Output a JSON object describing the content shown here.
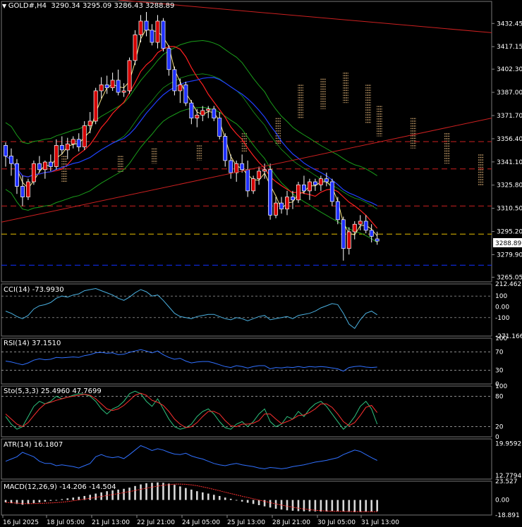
{
  "header": {
    "symbol": "GOLD#,H4",
    "ohlc": "3290.34 3295.09 3286.43 3288.89"
  },
  "price_axis": {
    "ticks": [
      "3432.45",
      "3417.15",
      "3402.30",
      "3387.00",
      "3371.70",
      "3356.40",
      "3341.10",
      "3325.80",
      "3310.50",
      "3295.20",
      "3279.90",
      "3265.05"
    ],
    "current_price_label": "3288.89"
  },
  "time_axis": {
    "labels": [
      "16 Jul 2025",
      "18 Jul 05:00",
      "21 Jul 13:00",
      "22 Jul 21:00",
      "24 Jul 05:00",
      "25 Jul 13:00",
      "28 Jul 21:00",
      "30 Jul 05:00",
      "31 Jul 13:00"
    ]
  },
  "indicators": {
    "cci": {
      "label": "CCI(14) -73.9930",
      "ticks": [
        "212.462",
        "100",
        "0.00",
        "-100",
        "-271.1664"
      ]
    },
    "rsi": {
      "label": "RSI(14) 37.1510",
      "ticks": [
        "100",
        "70",
        "30",
        "0"
      ]
    },
    "sto": {
      "label": "Sto(5,3,3) 25.4960 47.7699",
      "ticks": [
        "100",
        "80",
        "20",
        "0"
      ]
    },
    "atr": {
      "label": "ATR(14) 16.1807",
      "ticks": [
        "19.9592",
        "12.7794"
      ]
    },
    "macd": {
      "label": "MACD(12,26,9) -14.206 -14.504",
      "ticks": [
        "23.527",
        "0.00",
        "-18.891"
      ]
    }
  },
  "colors": {
    "bull": "#d40000",
    "bear": "#2030ff",
    "grid": "#555555",
    "tenkan": "#ff2020",
    "kijun": "#2040ff",
    "bands": "#1a9e1a",
    "cloud": "#f0c080",
    "hline_red": "#cc2020",
    "hline_yellow": "#e8c000",
    "hline_blue": "#1030ff"
  },
  "chart_data": {
    "type": "candlestick",
    "symbol": "GOLD#",
    "timeframe": "H4",
    "ylim": [
      3262,
      3447
    ],
    "candles": [
      [
        3352,
        3354,
        3338,
        3345
      ],
      [
        3345,
        3350,
        3332,
        3340
      ],
      [
        3340,
        3343,
        3320,
        3325
      ],
      [
        3325,
        3332,
        3312,
        3318
      ],
      [
        3318,
        3330,
        3316,
        3328
      ],
      [
        3328,
        3342,
        3326,
        3340
      ],
      [
        3340,
        3345,
        3334,
        3336
      ],
      [
        3336,
        3342,
        3330,
        3341
      ],
      [
        3341,
        3346,
        3335,
        3338
      ],
      [
        3338,
        3356,
        3336,
        3352
      ],
      [
        3352,
        3358,
        3346,
        3349
      ],
      [
        3349,
        3357,
        3343,
        3353
      ],
      [
        3353,
        3358,
        3350,
        3356
      ],
      [
        3356,
        3360,
        3348,
        3351
      ],
      [
        3351,
        3368,
        3349,
        3365
      ],
      [
        3365,
        3374,
        3360,
        3368
      ],
      [
        3368,
        3390,
        3366,
        3388
      ],
      [
        3388,
        3397,
        3383,
        3392
      ],
      [
        3392,
        3398,
        3386,
        3390
      ],
      [
        3390,
        3400,
        3388,
        3395
      ],
      [
        3395,
        3402,
        3385,
        3387
      ],
      [
        3387,
        3393,
        3384,
        3388
      ],
      [
        3388,
        3410,
        3386,
        3408
      ],
      [
        3408,
        3428,
        3405,
        3425
      ],
      [
        3425,
        3438,
        3420,
        3434
      ],
      [
        3434,
        3440,
        3424,
        3428
      ],
      [
        3428,
        3432,
        3418,
        3420
      ],
      [
        3420,
        3438,
        3416,
        3434
      ],
      [
        3434,
        3436,
        3414,
        3416
      ],
      [
        3416,
        3418,
        3398,
        3402
      ],
      [
        3402,
        3404,
        3385,
        3388
      ],
      [
        3388,
        3396,
        3380,
        3392
      ],
      [
        3392,
        3394,
        3378,
        3380
      ],
      [
        3380,
        3382,
        3366,
        3370
      ],
      [
        3370,
        3376,
        3364,
        3372
      ],
      [
        3372,
        3378,
        3368,
        3375
      ],
      [
        3375,
        3378,
        3370,
        3376
      ],
      [
        3376,
        3378,
        3368,
        3370
      ],
      [
        3370,
        3374,
        3356,
        3358
      ],
      [
        3358,
        3360,
        3338,
        3342
      ],
      [
        3342,
        3346,
        3330,
        3334
      ],
      [
        3334,
        3342,
        3328,
        3340
      ],
      [
        3340,
        3346,
        3334,
        3336
      ],
      [
        3336,
        3342,
        3318,
        3322
      ],
      [
        3322,
        3332,
        3320,
        3330
      ],
      [
        3330,
        3338,
        3326,
        3335
      ],
      [
        3335,
        3340,
        3330,
        3336
      ],
      [
        3336,
        3340,
        3303,
        3306
      ],
      [
        3306,
        3318,
        3304,
        3314
      ],
      [
        3314,
        3318,
        3307,
        3310
      ],
      [
        3310,
        3322,
        3306,
        3318
      ],
      [
        3318,
        3322,
        3310,
        3316
      ],
      [
        3316,
        3328,
        3314,
        3326
      ],
      [
        3326,
        3332,
        3320,
        3322
      ],
      [
        3322,
        3330,
        3316,
        3328
      ],
      [
        3328,
        3330,
        3322,
        3326
      ],
      [
        3326,
        3332,
        3322,
        3330
      ],
      [
        3330,
        3334,
        3325,
        3328
      ],
      [
        3328,
        3330,
        3312,
        3315
      ],
      [
        3315,
        3318,
        3300,
        3303
      ],
      [
        3303,
        3305,
        3276,
        3284
      ],
      [
        3284,
        3298,
        3280,
        3295
      ],
      [
        3295,
        3302,
        3290,
        3300
      ],
      [
        3300,
        3306,
        3296,
        3302
      ],
      [
        3302,
        3306,
        3294,
        3296
      ],
      [
        3296,
        3300,
        3288,
        3292
      ],
      [
        3290.34,
        3295.09,
        3286.43,
        3288.89
      ]
    ],
    "current_price": 3288.89,
    "horizontal_levels": [
      {
        "value": 3354.5,
        "style": "dashed",
        "color": "red"
      },
      {
        "value": 3336.5,
        "style": "dashed",
        "color": "red"
      },
      {
        "value": 3312,
        "style": "dashed",
        "color": "red"
      },
      {
        "value": 3293.5,
        "style": "dashed",
        "color": "yellow"
      },
      {
        "value": 3273,
        "style": "dashed",
        "color": "blue"
      }
    ],
    "trendlines": [
      {
        "from": [
          0,
          3302
        ],
        "to": [
          66,
          3354
        ]
      },
      {
        "from": [
          20,
          3448
        ],
        "to": [
          66,
          3433
        ]
      }
    ],
    "indicator_series": {
      "cci": [
        -40,
        -60,
        -90,
        -110,
        -80,
        -20,
        10,
        20,
        40,
        80,
        100,
        90,
        110,
        120,
        150,
        160,
        170,
        150,
        130,
        110,
        80,
        60,
        90,
        130,
        160,
        140,
        100,
        110,
        60,
        0,
        -60,
        -90,
        -100,
        -110,
        -90,
        -80,
        -70,
        -70,
        -90,
        -110,
        -120,
        -100,
        -110,
        -130,
        -110,
        -90,
        -80,
        -120,
        -110,
        -100,
        -90,
        -110,
        -80,
        -70,
        -60,
        -40,
        -10,
        10,
        30,
        20,
        -60,
        -160,
        -200,
        -120,
        -60,
        -40,
        -74
      ],
      "rsi": [
        50,
        48,
        45,
        42,
        46,
        52,
        55,
        53,
        54,
        58,
        57,
        58,
        59,
        58,
        62,
        64,
        68,
        69,
        67,
        68,
        64,
        65,
        69,
        72,
        75,
        72,
        68,
        72,
        64,
        58,
        54,
        56,
        50,
        46,
        48,
        49,
        49,
        46,
        42,
        38,
        36,
        40,
        38,
        35,
        38,
        40,
        40,
        33,
        36,
        35,
        37,
        36,
        38,
        36,
        38,
        37,
        38,
        37,
        35,
        33,
        28,
        36,
        38,
        39,
        37,
        36,
        37
      ],
      "sto_k": [
        40,
        25,
        15,
        20,
        40,
        60,
        70,
        65,
        70,
        80,
        75,
        78,
        82,
        85,
        84,
        80,
        70,
        55,
        45,
        55,
        60,
        70,
        85,
        90,
        85,
        70,
        60,
        75,
        55,
        35,
        20,
        15,
        18,
        25,
        40,
        50,
        55,
        45,
        30,
        18,
        15,
        25,
        30,
        20,
        30,
        45,
        55,
        30,
        20,
        25,
        40,
        35,
        50,
        40,
        55,
        65,
        70,
        60,
        45,
        30,
        15,
        25,
        40,
        60,
        70,
        55,
        25
      ],
      "sto_d": [
        45,
        35,
        25,
        20,
        28,
        42,
        55,
        65,
        68,
        72,
        75,
        78,
        80,
        82,
        84,
        82,
        75,
        65,
        55,
        52,
        55,
        62,
        72,
        82,
        86,
        82,
        72,
        68,
        62,
        50,
        35,
        25,
        18,
        20,
        28,
        40,
        50,
        50,
        45,
        32,
        22,
        20,
        25,
        25,
        27,
        32,
        45,
        45,
        35,
        26,
        30,
        35,
        42,
        43,
        48,
        55,
        65,
        65,
        58,
        45,
        30,
        22,
        28,
        42,
        58,
        62,
        47.77
      ],
      "atr": [
        16,
        16.5,
        17,
        18,
        17.5,
        17,
        16,
        15.5,
        15.5,
        15,
        15.2,
        15,
        14.8,
        14.5,
        15,
        15.5,
        17,
        17.5,
        17,
        16.8,
        17,
        16.6,
        17.5,
        18.5,
        19.5,
        19,
        18.4,
        18.8,
        18.5,
        18,
        17.6,
        17.5,
        17.8,
        17.2,
        16.8,
        16.5,
        16,
        15.5,
        15.2,
        15,
        15.3,
        15.5,
        15.2,
        15,
        14.8,
        14.5,
        14.3,
        14.6,
        14.5,
        14.3,
        14.5,
        14.8,
        15,
        15.2,
        15.5,
        15.8,
        16,
        16.2,
        16.5,
        16.8,
        17.5,
        18,
        18.5,
        18.2,
        17.5,
        16.8,
        16.18
      ],
      "macd": [
        -3,
        -4,
        -5,
        -6,
        -5,
        -4,
        -3,
        -2,
        -1,
        0,
        1,
        2,
        3,
        4,
        5,
        6.5,
        8,
        9.5,
        11,
        12,
        13,
        14,
        15.5,
        17.5,
        19.5,
        21,
        21.5,
        22,
        21.5,
        20.5,
        19,
        17,
        15,
        13,
        11,
        9.5,
        8,
        6.5,
        5,
        3,
        1.5,
        0,
        -2,
        -3.5,
        -5,
        -6.5,
        -8,
        -9.5,
        -11,
        -12,
        -13,
        -13.5,
        -14,
        -14.2,
        -14.3,
        -14.4,
        -14.5,
        -14.4,
        -14.3,
        -14.2,
        -14.5,
        -15,
        -15.2,
        -15,
        -14.8,
        -14.5,
        -14.21
      ]
    }
  }
}
